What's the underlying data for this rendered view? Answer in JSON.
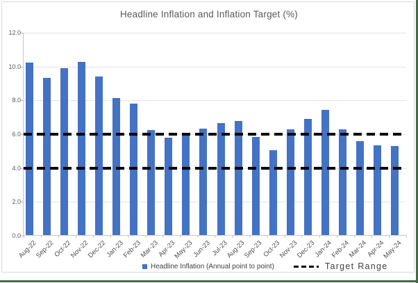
{
  "chart_data": {
    "type": "bar",
    "title": "Headline Inflation and Inflation Target (%)",
    "categories": [
      "Aug-22",
      "Sep-22",
      "Oct-22",
      "Nov-22",
      "Dec-22",
      "Jan-23",
      "Feb-23",
      "Mar-23",
      "Apr-23",
      "May-23",
      "Jun-23",
      "Jul-23",
      "Aug-23",
      "Sep-23",
      "Oct-23",
      "Nov-23",
      "Dec-23",
      "Jan-24",
      "Feb-24",
      "Mar-24",
      "Apr-24",
      "May-24"
    ],
    "series": [
      {
        "name": "Headline Inflation (Annual point to point)",
        "values": [
          10.2,
          9.3,
          9.85,
          10.25,
          9.35,
          8.1,
          7.75,
          6.2,
          5.75,
          6.0,
          6.3,
          6.6,
          6.75,
          5.8,
          5.0,
          6.25,
          6.85,
          7.4,
          6.25,
          5.55,
          5.3,
          5.25
        ]
      }
    ],
    "target_range": {
      "label": "Target Range",
      "lines": [
        4.0,
        6.0
      ]
    },
    "xlabel": "",
    "ylabel": "",
    "ylim": [
      0,
      12
    ],
    "y_ticks": [
      {
        "value": 0,
        "label": "0.0"
      },
      {
        "value": 2,
        "label": "2.0"
      },
      {
        "value": 4,
        "label": "4.0"
      },
      {
        "value": 6,
        "label": "6.0"
      },
      {
        "value": 8,
        "label": "8.0"
      },
      {
        "value": 10,
        "label": "10.0"
      },
      {
        "value": 12,
        "label": "12.0"
      }
    ],
    "grid": true,
    "legend_position": "bottom",
    "colors": {
      "bar": "#4472C4",
      "target_line": "#000000",
      "gridline": "#e3e3e3",
      "axis_text": "#595959",
      "title_text": "#595959",
      "legend_text": "#404040",
      "accent_border": "#47694b"
    }
  },
  "legend": {
    "series_label": "Headline Inflation (Annual point to point)",
    "target_label": "Target Range"
  }
}
